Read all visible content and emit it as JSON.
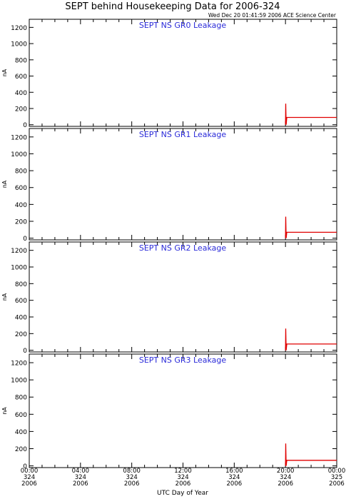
{
  "title": "SEPT behind Housekeeping Data for 2006-324",
  "timestamp": "Wed Dec 20 01:41:59 2006 ACE Science Center",
  "xlabel": "UTC Day of Year",
  "ylabel": "nA",
  "x_ticks": [
    {
      "time": "00:00",
      "doy": "324",
      "year": "2006"
    },
    {
      "time": "04:00",
      "doy": "324",
      "year": "2006"
    },
    {
      "time": "08:00",
      "doy": "324",
      "year": "2006"
    },
    {
      "time": "12:00",
      "doy": "324",
      "year": "2006"
    },
    {
      "time": "16:00",
      "doy": "324",
      "year": "2006"
    },
    {
      "time": "20:00",
      "doy": "324",
      "year": "2006"
    },
    {
      "time": "00:00",
      "doy": "325",
      "year": "2006"
    }
  ],
  "colors": {
    "trace": "#e00000",
    "panel_title": "#2b2bd9",
    "axis": "#000000"
  },
  "chart_data": [
    {
      "type": "line",
      "title": "SEPT NS GR0 Leakage",
      "ylabel": "nA",
      "xlim": [
        0,
        24
      ],
      "ylim": [
        -20,
        1300
      ],
      "yticks": [
        0,
        200,
        400,
        600,
        800,
        1000,
        1200
      ],
      "series": [
        {
          "x": [
            20.0,
            20.02,
            20.05,
            20.1,
            24.0
          ],
          "y": [
            0,
            260,
            0,
            90,
            90
          ]
        }
      ]
    },
    {
      "type": "line",
      "title": "SEPT NS GR1 Leakage",
      "ylabel": "nA",
      "xlim": [
        0,
        24
      ],
      "ylim": [
        -20,
        1300
      ],
      "yticks": [
        0,
        200,
        400,
        600,
        800,
        1000,
        1200
      ],
      "series": [
        {
          "x": [
            20.0,
            20.02,
            20.05,
            20.1,
            24.0
          ],
          "y": [
            0,
            255,
            0,
            70,
            70
          ]
        }
      ]
    },
    {
      "type": "line",
      "title": "SEPT NS GR2 Leakage",
      "ylabel": "nA",
      "xlim": [
        0,
        24
      ],
      "ylim": [
        -20,
        1300
      ],
      "yticks": [
        0,
        200,
        400,
        600,
        800,
        1000,
        1200
      ],
      "series": [
        {
          "x": [
            20.0,
            20.02,
            20.05,
            20.1,
            24.0
          ],
          "y": [
            0,
            260,
            0,
            75,
            75
          ]
        }
      ]
    },
    {
      "type": "line",
      "title": "SEPT NS GR3 Leakage",
      "ylabel": "nA",
      "xlim": [
        0,
        24
      ],
      "ylim": [
        -20,
        1300
      ],
      "yticks": [
        0,
        200,
        400,
        600,
        800,
        1000,
        1200
      ],
      "series": [
        {
          "x": [
            20.0,
            20.02,
            20.05,
            20.1,
            24.0
          ],
          "y": [
            0,
            260,
            0,
            65,
            65
          ]
        }
      ]
    }
  ]
}
